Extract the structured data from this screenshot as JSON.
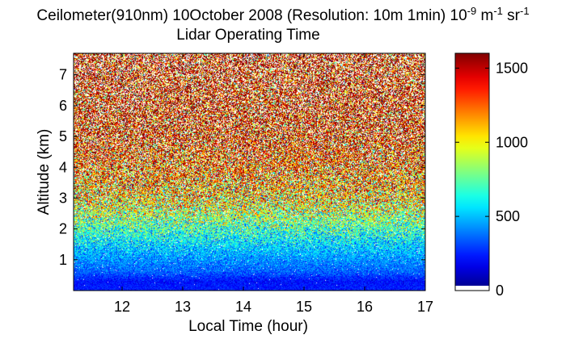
{
  "chart_data": {
    "type": "heatmap",
    "title": {
      "line1_prefix": "Ceilometer(910nm) 10October 2008 (Resolution: 10m 1min) 10",
      "exp1": "-9",
      "unit_m": " m",
      "exp2": "-1",
      "unit_sr": " sr",
      "exp3": "-1",
      "line2": "Lidar Operating Time"
    },
    "xlabel": "Local Time (hour)",
    "ylabel": "Altitude (km)",
    "xlim": [
      11.2,
      17.0
    ],
    "ylim": [
      0.0,
      7.7
    ],
    "xticks": [
      12,
      13,
      14,
      15,
      16,
      17
    ],
    "yticks": [
      1,
      2,
      3,
      4,
      5,
      6,
      7
    ],
    "colorbar": {
      "colormap": "jet",
      "clim": [
        0,
        1600
      ],
      "ticks": [
        0,
        500,
        1000,
        1500
      ]
    },
    "grid": false,
    "profile_mean_by_altitude_km": [
      {
        "altitude": 0.0,
        "value": 250
      },
      {
        "altitude": 0.3,
        "value": 220
      },
      {
        "altitude": 0.6,
        "value": 350
      },
      {
        "altitude": 1.0,
        "value": 430
      },
      {
        "altitude": 1.5,
        "value": 550
      },
      {
        "altitude": 2.0,
        "value": 700
      },
      {
        "altitude": 2.5,
        "value": 880
      },
      {
        "altitude": 3.0,
        "value": 1050
      },
      {
        "altitude": 4.0,
        "value": 1250
      },
      {
        "altitude": 5.0,
        "value": 1400
      },
      {
        "altitude": 6.0,
        "value": 1450
      },
      {
        "altitude": 7.7,
        "value": 1480
      }
    ],
    "noise_spread_by_altitude_km": [
      {
        "altitude": 0.0,
        "value": 60
      },
      {
        "altitude": 1.0,
        "value": 130
      },
      {
        "altitude": 2.0,
        "value": 300
      },
      {
        "altitude": 3.0,
        "value": 500
      },
      {
        "altitude": 5.0,
        "value": 650
      },
      {
        "altitude": 7.7,
        "value": 700
      }
    ],
    "white_fraction_by_altitude_km": [
      {
        "altitude": 0.0,
        "value": 0.0
      },
      {
        "altitude": 2.0,
        "value": 0.03
      },
      {
        "altitude": 3.0,
        "value": 0.1
      },
      {
        "altitude": 5.0,
        "value": 0.22
      },
      {
        "altitude": 7.7,
        "value": 0.32
      }
    ]
  }
}
